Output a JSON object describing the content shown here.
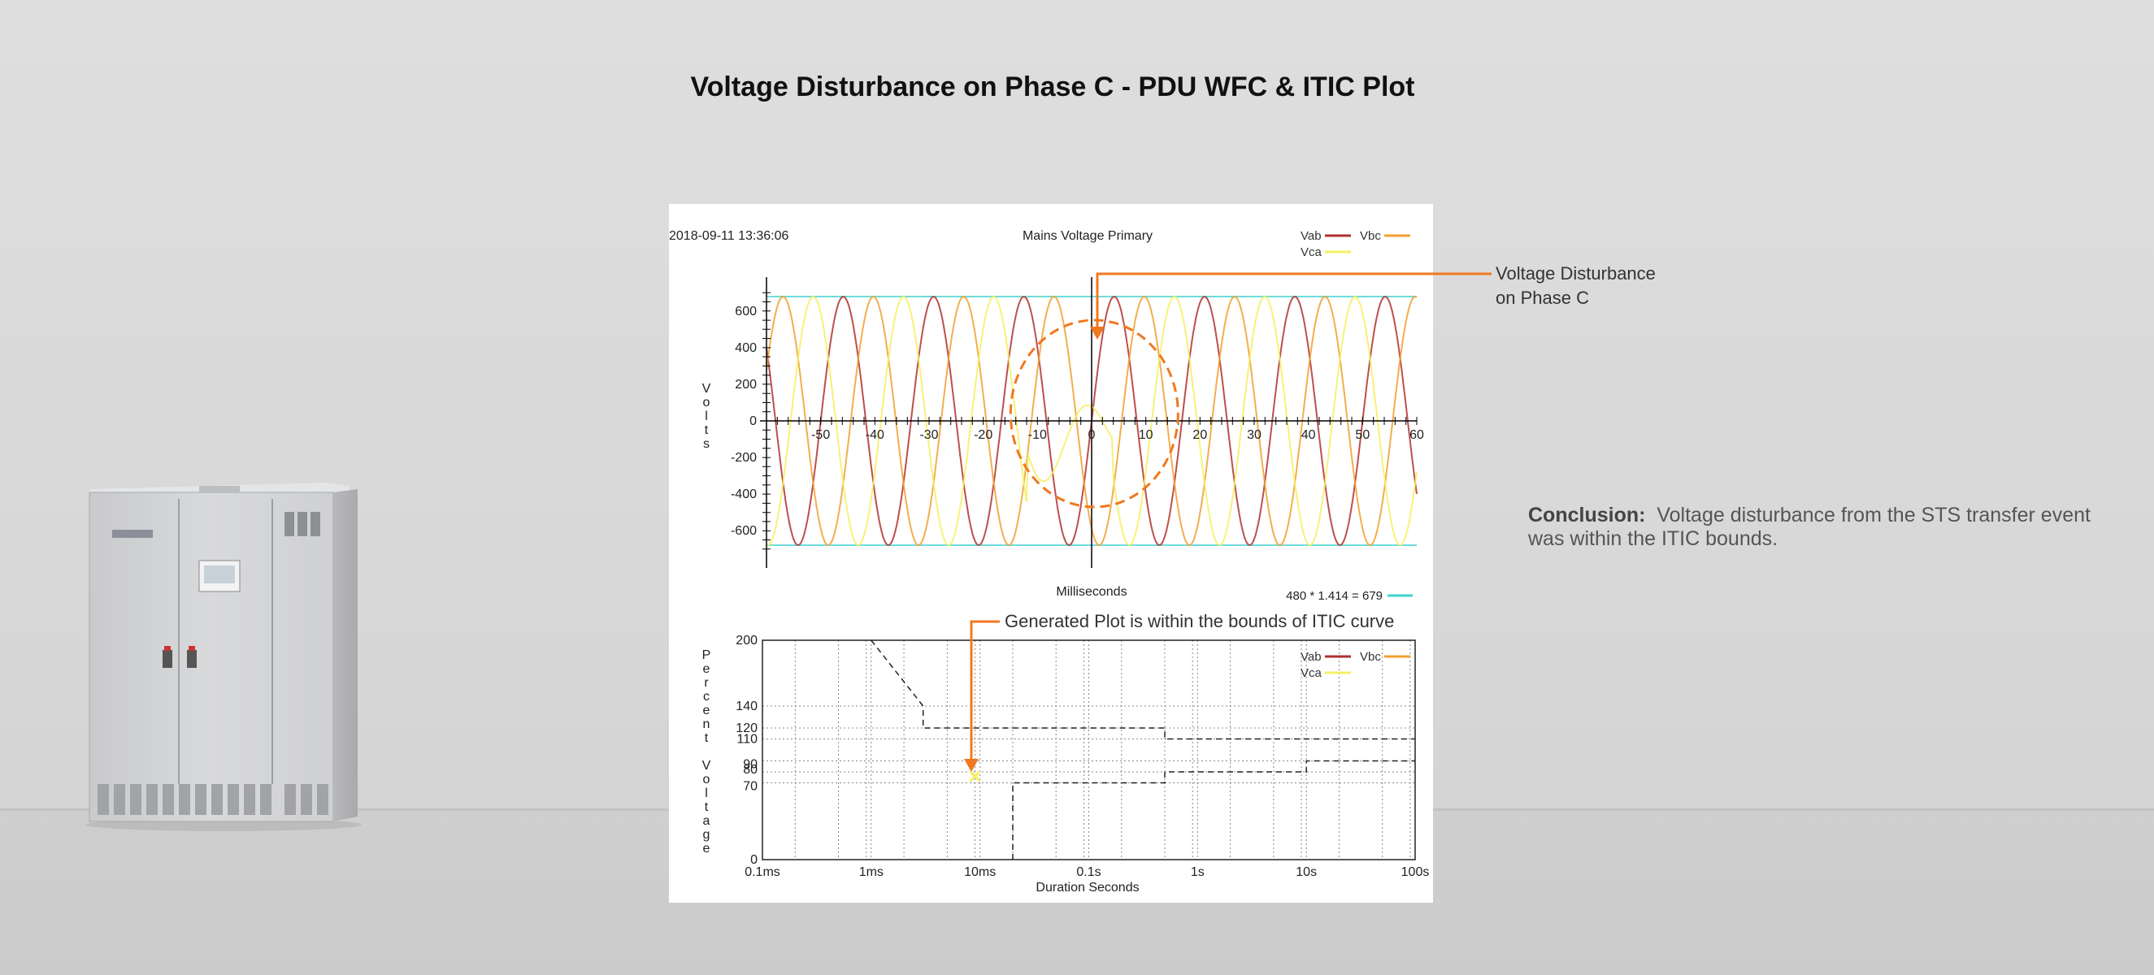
{
  "page": {
    "title": "Voltage Disturbance on Phase C - PDU WFC & ITIC Plot",
    "callout_disturbance": [
      "Voltage Disturbance",
      "on Phase C"
    ],
    "callout_itic": "Generated Plot is within the bounds of ITIC curve",
    "conclusion_label": "Conclusion:",
    "conclusion_text": "Voltage disturbance from the STS transfer event was within the ITIC bounds."
  },
  "colors": {
    "vab": "#b03030",
    "vbc": "#f0a030",
    "vca": "#f5f060",
    "limit": "#40d0d0",
    "annotation": "#f07820"
  },
  "chart_data": [
    {
      "type": "line",
      "title": "Mains Voltage Primary",
      "timestamp": "2018-09-11 13:36:06",
      "xlabel": "Milliseconds",
      "ylabel": "Volts",
      "xlim": [
        -60,
        60
      ],
      "ylim": [
        -750,
        750
      ],
      "x_ticks": [
        -50,
        -40,
        -30,
        -20,
        -10,
        0,
        10,
        20,
        30,
        40,
        50,
        60
      ],
      "y_ticks": [
        600,
        400,
        200,
        0,
        -200,
        -400,
        -600
      ],
      "grid": false,
      "legend": "top-right",
      "limit_label": "480 * 1.414 = 679",
      "limit_value": 679,
      "series": [
        {
          "name": "Vab",
          "amplitude": 679,
          "frequency_hz": 60,
          "phase_deg": 0
        },
        {
          "name": "Vbc",
          "amplitude": 679,
          "frequency_hz": 60,
          "phase_deg": -120
        },
        {
          "name": "Vca",
          "amplitude": 679,
          "frequency_hz": 60,
          "phase_deg": 120
        }
      ],
      "disturbance": {
        "phase": "C",
        "start_ms": -12,
        "end_ms": 4
      }
    },
    {
      "type": "line",
      "xlabel": "Duration Seconds",
      "ylabel": "Percent Voltage",
      "x_scale": "log",
      "xlim": [
        0.0001,
        100
      ],
      "x_ticks": [
        "0.1ms",
        "1ms",
        "10ms",
        "0.1s",
        "1s",
        "10s",
        "100s"
      ],
      "y_ticks": [
        200,
        140,
        120,
        110,
        90,
        80,
        70,
        0
      ],
      "ylim": [
        0,
        200
      ],
      "grid": true,
      "legend": "top-right",
      "series": [
        {
          "name": "Vab",
          "values": []
        },
        {
          "name": "Vbc",
          "values": []
        },
        {
          "name": "Vca",
          "values": []
        }
      ],
      "event_point": {
        "x": 0.009,
        "y": 76,
        "marker": "x"
      },
      "itic_upper": [
        [
          0.001,
          200
        ],
        [
          0.003,
          140
        ],
        [
          0.003,
          120
        ],
        [
          0.5,
          120
        ],
        [
          0.5,
          110
        ],
        [
          10,
          110
        ],
        [
          100,
          110
        ]
      ],
      "itic_lower": [
        [
          0.02,
          0
        ],
        [
          0.02,
          70
        ],
        [
          0.5,
          70
        ],
        [
          0.5,
          80
        ],
        [
          10,
          80
        ],
        [
          10,
          90
        ],
        [
          100,
          90
        ]
      ]
    }
  ]
}
